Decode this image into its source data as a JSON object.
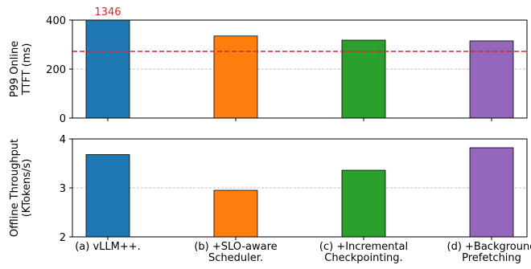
{
  "chart_data": [
    {
      "type": "bar",
      "ylabel": [
        "P99 Online",
        "TTFT (ms)"
      ],
      "values": [
        1346,
        335,
        318,
        315
      ],
      "value_labels": [
        "1346",
        null,
        null,
        null
      ],
      "value_label_color": "#d62728",
      "colors": [
        "#1f77b4",
        "#ff7f0e",
        "#2ca02c",
        "#9467bd"
      ],
      "ylim": [
        0,
        400
      ],
      "yticks": [
        0,
        200,
        400
      ],
      "grid": true,
      "hline": {
        "value": 272,
        "color": "#d62728"
      }
    },
    {
      "type": "bar",
      "ylabel": [
        "Offline Throughput",
        "(KTokens/s)"
      ],
      "categories": [
        [
          "(a) vLLM++."
        ],
        [
          "(b) +SLO-aware",
          "Scheduler."
        ],
        [
          "(c) +Incremental",
          "Checkpointing."
        ],
        [
          "(d) +Background",
          "Prefetching"
        ]
      ],
      "values": [
        3.68,
        2.95,
        3.36,
        3.82
      ],
      "colors": [
        "#1f77b4",
        "#ff7f0e",
        "#2ca02c",
        "#9467bd"
      ],
      "ylim": [
        2,
        4
      ],
      "yticks": [
        2,
        3,
        4
      ],
      "grid": true
    }
  ]
}
